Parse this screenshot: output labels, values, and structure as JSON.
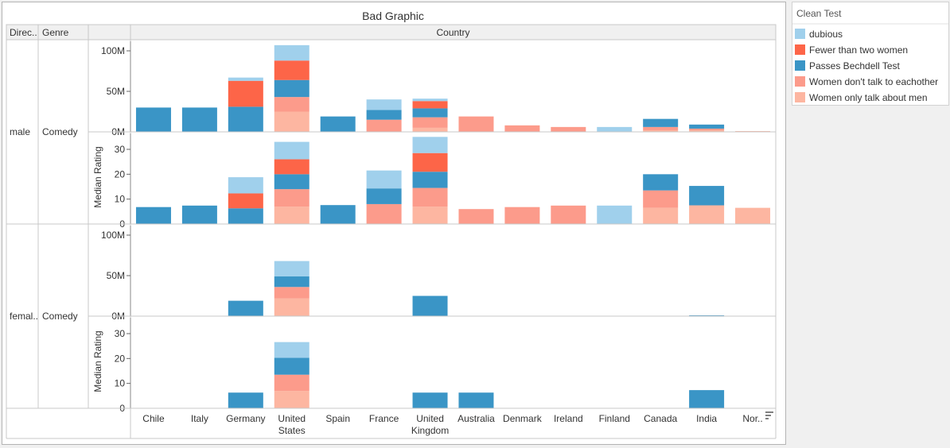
{
  "chart_data": {
    "type": "bar",
    "title": "Bad Graphic",
    "stacked": true,
    "row_headers": [
      "Direc..",
      "Genre"
    ],
    "column_header": "Country",
    "categories": [
      "Chile",
      "Italy",
      "Germany",
      "United States",
      "Spain",
      "France",
      "United Kingdom",
      "Australia",
      "Denmark",
      "Ireland",
      "Finland",
      "Canada",
      "India",
      "Nor.."
    ],
    "category_label_lines": [
      [
        "Chile"
      ],
      [
        "Italy"
      ],
      [
        "Germany"
      ],
      [
        "United",
        "States"
      ],
      [
        "Spain"
      ],
      [
        "France"
      ],
      [
        "United",
        "Kingdom"
      ],
      [
        "Australia"
      ],
      [
        "Denmark"
      ],
      [
        "Ireland"
      ],
      [
        "Finland"
      ],
      [
        "Canada"
      ],
      [
        "India"
      ],
      [
        "Nor.."
      ]
    ],
    "legend": {
      "title": "Clean Test",
      "placement": "right",
      "items": [
        {
          "label": "dubious",
          "color": "#a0d0ec"
        },
        {
          "label": "Fewer than two women",
          "color": "#fd6548"
        },
        {
          "label": "Passes Bechdell Test",
          "color": "#3a95c6"
        },
        {
          "label": "Women don't talk to eachother",
          "color": "#fc9b8b"
        },
        {
          "label": "Women only talk about men",
          "color": "#fdb6a1"
        }
      ]
    },
    "stack_order": [
      "Women only talk about men",
      "Women don't talk to eachother",
      "Passes Bechdell Test",
      "Fewer than two women",
      "dubious"
    ],
    "rows": [
      {
        "director": "male",
        "genre": "Comedy",
        "panels": [
          {
            "measure": "gross",
            "axis_title": "",
            "ylim": [
              0,
              110000000
            ],
            "ticks": [
              {
                "value": 0,
                "label": "0M"
              },
              {
                "value": 50000000,
                "label": "50M"
              },
              {
                "value": 100000000,
                "label": "100M"
              }
            ],
            "series": [
              {
                "name": "Women only talk about men",
                "values": [
                  0,
                  0,
                  0,
                  25000000,
                  0,
                  0,
                  5000000,
                  0,
                  0,
                  0,
                  0,
                  2000000,
                  2000000,
                  1000000
                ]
              },
              {
                "name": "Women don't talk to eachother",
                "values": [
                  0,
                  0,
                  0,
                  18000000,
                  0,
                  15000000,
                  13000000,
                  19000000,
                  8000000,
                  6000000,
                  0,
                  4000000,
                  2000000,
                  0
                ]
              },
              {
                "name": "Passes Bechdell Test",
                "values": [
                  30000000,
                  30000000,
                  31000000,
                  21000000,
                  19000000,
                  12000000,
                  11000000,
                  0,
                  0,
                  0,
                  0,
                  10000000,
                  5000000,
                  0
                ]
              },
              {
                "name": "Fewer than two women",
                "values": [
                  0,
                  0,
                  32000000,
                  24000000,
                  0,
                  0,
                  9000000,
                  0,
                  0,
                  0,
                  0,
                  0,
                  0,
                  0
                ]
              },
              {
                "name": "dubious",
                "values": [
                  0,
                  0,
                  4000000,
                  19000000,
                  0,
                  13000000,
                  3000000,
                  0,
                  0,
                  0,
                  6000000,
                  0,
                  0,
                  0
                ]
              }
            ]
          },
          {
            "measure": "median_rating",
            "axis_title": "Median Rating",
            "ylim": [
              0,
              36
            ],
            "ticks": [
              {
                "value": 0,
                "label": "0"
              },
              {
                "value": 10,
                "label": "10"
              },
              {
                "value": 20,
                "label": "20"
              },
              {
                "value": 30,
                "label": "30"
              }
            ],
            "series": [
              {
                "name": "Women only talk about men",
                "values": [
                  0,
                  0,
                  0,
                  7,
                  0,
                  0,
                  7,
                  0,
                  0,
                  0,
                  0,
                  6.5,
                  7.5,
                  6.5
                ]
              },
              {
                "name": "Women don't talk to eachother",
                "values": [
                  0,
                  0,
                  0,
                  7,
                  0,
                  8,
                  7.5,
                  6,
                  6.8,
                  7.4,
                  0,
                  7,
                  0,
                  0
                ]
              },
              {
                "name": "Passes Bechdell Test",
                "values": [
                  6.8,
                  7.4,
                  6.3,
                  6,
                  7.6,
                  6.3,
                  6.5,
                  0,
                  0,
                  0,
                  0,
                  6.5,
                  7.8,
                  0
                ]
              },
              {
                "name": "Fewer than two women",
                "values": [
                  0,
                  0,
                  6,
                  6,
                  0,
                  0,
                  7.5,
                  0,
                  0,
                  0,
                  0,
                  0,
                  0,
                  0
                ]
              },
              {
                "name": "dubious",
                "values": [
                  0,
                  0,
                  6.5,
                  7,
                  0,
                  7.2,
                  6.5,
                  0,
                  0,
                  0,
                  7.4,
                  0,
                  0,
                  0
                ]
              }
            ]
          }
        ]
      },
      {
        "director": "femal..",
        "genre": "Comedy",
        "panels": [
          {
            "measure": "gross",
            "axis_title": "",
            "ylim": [
              0,
              110000000
            ],
            "ticks": [
              {
                "value": 0,
                "label": "0M"
              },
              {
                "value": 50000000,
                "label": "50M"
              },
              {
                "value": 100000000,
                "label": "100M"
              }
            ],
            "series": [
              {
                "name": "Women only talk about men",
                "values": [
                  0,
                  0,
                  0,
                  22000000,
                  0,
                  0,
                  0,
                  0,
                  0,
                  0,
                  0,
                  0,
                  0,
                  0
                ]
              },
              {
                "name": "Women don't talk to eachother",
                "values": [
                  0,
                  0,
                  0,
                  14000000,
                  0,
                  0,
                  0,
                  0,
                  0,
                  0,
                  0,
                  0,
                  0,
                  0
                ]
              },
              {
                "name": "Passes Bechdell Test",
                "values": [
                  0,
                  0,
                  19000000,
                  13000000,
                  0,
                  0,
                  25000000,
                  0,
                  0,
                  0,
                  0,
                  0,
                  1000000,
                  0
                ]
              },
              {
                "name": "Fewer than two women",
                "values": [
                  0,
                  0,
                  0,
                  0,
                  0,
                  0,
                  0,
                  0,
                  0,
                  0,
                  0,
                  0,
                  0,
                  0
                ]
              },
              {
                "name": "dubious",
                "values": [
                  0,
                  0,
                  0,
                  19000000,
                  0,
                  0,
                  0,
                  0,
                  0,
                  0,
                  0,
                  0,
                  0,
                  0
                ]
              }
            ]
          },
          {
            "measure": "median_rating",
            "axis_title": "Median Rating",
            "ylim": [
              0,
              36
            ],
            "ticks": [
              {
                "value": 0,
                "label": "0"
              },
              {
                "value": 10,
                "label": "10"
              },
              {
                "value": 20,
                "label": "20"
              },
              {
                "value": 30,
                "label": "30"
              }
            ],
            "series": [
              {
                "name": "Women only talk about men",
                "values": [
                  0,
                  0,
                  0,
                  7,
                  0,
                  0,
                  0,
                  0,
                  0,
                  0,
                  0,
                  0,
                  0,
                  0
                ]
              },
              {
                "name": "Women don't talk to eachother",
                "values": [
                  0,
                  0,
                  0,
                  6.5,
                  0,
                  0,
                  0,
                  0,
                  0,
                  0,
                  0,
                  0,
                  0,
                  0
                ]
              },
              {
                "name": "Passes Bechdell Test",
                "values": [
                  0,
                  0,
                  6.3,
                  6.8,
                  0,
                  0,
                  6.3,
                  6.3,
                  0,
                  0,
                  0,
                  0,
                  7.3,
                  0
                ]
              },
              {
                "name": "Fewer than two women",
                "values": [
                  0,
                  0,
                  0,
                  0,
                  0,
                  0,
                  0,
                  0,
                  0,
                  0,
                  0,
                  0,
                  0,
                  0
                ]
              },
              {
                "name": "dubious",
                "values": [
                  0,
                  0,
                  0,
                  6.3,
                  0,
                  0,
                  0,
                  0,
                  0,
                  0,
                  0,
                  0,
                  0,
                  0
                ]
              }
            ]
          }
        ]
      }
    ]
  },
  "sort_icon": "sort-descending-icon"
}
